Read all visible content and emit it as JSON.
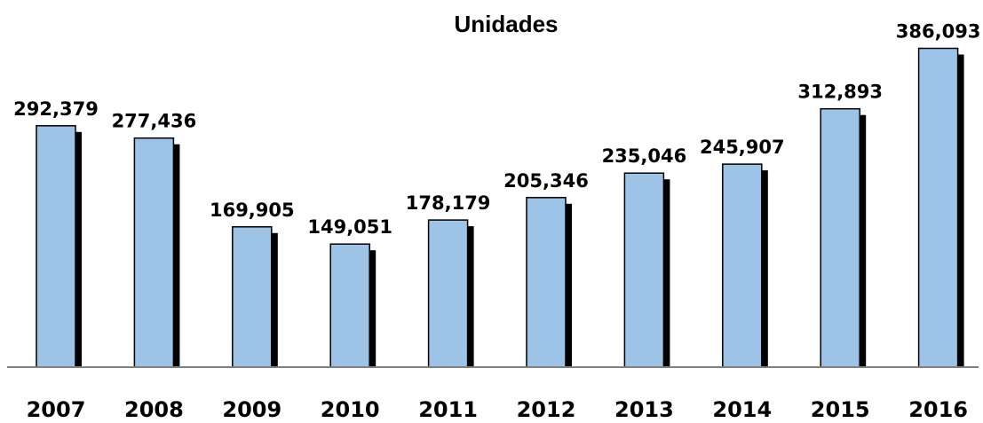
{
  "chart_data": {
    "type": "bar",
    "title": "Unidades",
    "xlabel": "",
    "ylabel": "",
    "categories": [
      "2007",
      "2008",
      "2009",
      "2010",
      "2011",
      "2012",
      "2013",
      "2014",
      "2015",
      "2016"
    ],
    "values": [
      292379,
      277436,
      169905,
      149051,
      178179,
      205346,
      235046,
      245907,
      312893,
      386093
    ],
    "data_labels": [
      "292,379",
      "277,436",
      "169,905",
      "149,051",
      "178,179",
      "205,346",
      "235,046",
      "245,907",
      "312,893",
      "386,093"
    ],
    "ylim": [
      0,
      400000
    ],
    "grid": false,
    "legend": "none",
    "colors": {
      "bar_fill": "#9DC3E6",
      "bar_stroke": "#000000",
      "bar_shadow": "#000000",
      "axis": "#808080"
    }
  }
}
